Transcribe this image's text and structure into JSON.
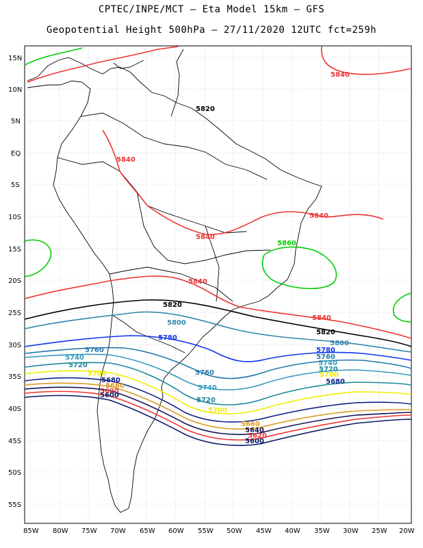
{
  "header": {
    "line1": "CPTEC/INPE/MCT –  Eta Model 15km – GFS",
    "line2": "Geopotential Height 500hPa – 27/11/2020 12UTC fct=259h"
  },
  "axes": {
    "lat_labels": [
      "15N",
      "10N",
      "5N",
      "EQ",
      "5S",
      "10S",
      "15S",
      "20S",
      "25S",
      "30S",
      "35S",
      "40S",
      "45S",
      "50S",
      "55S"
    ],
    "lon_labels": [
      "85W",
      "80W",
      "75W",
      "70W",
      "65W",
      "60W",
      "55W",
      "50W",
      "45W",
      "40W",
      "35W",
      "30W",
      "25W",
      "20W"
    ]
  },
  "contours": [
    {
      "value": "5860",
      "color": "#00cc00"
    },
    {
      "value": "5840",
      "color": "#ee3333"
    },
    {
      "value": "5820",
      "color": "#000000"
    },
    {
      "value": "5800",
      "color": "#3388aa"
    },
    {
      "value": "5780",
      "color": "#1133ee"
    },
    {
      "value": "5760",
      "color": "#2277aa"
    },
    {
      "value": "5740",
      "color": "#3399bb"
    },
    {
      "value": "5720",
      "color": "#1a8899"
    },
    {
      "value": "5700",
      "color": "#eeee00"
    },
    {
      "value": "5680",
      "color": "#112288"
    },
    {
      "value": "5660",
      "color": "#dd9922"
    },
    {
      "value": "5640",
      "color": "#111155"
    },
    {
      "value": "5620",
      "color": "#ee3333"
    },
    {
      "value": "5600",
      "color": "#0a1a66"
    }
  ]
}
